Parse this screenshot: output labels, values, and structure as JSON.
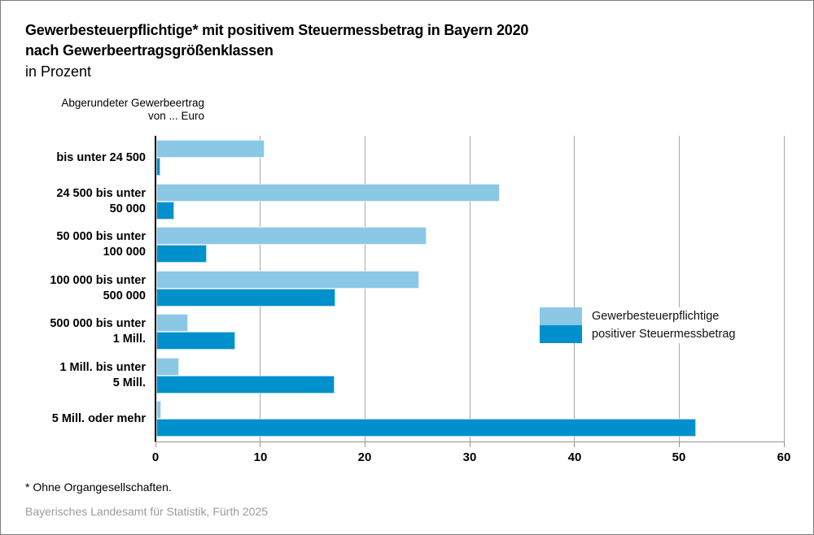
{
  "header": {
    "title_line1": "Gewerbesteuerpflichtige* mit positivem Steuermessbetrag in Bayern 2020",
    "title_line2": "nach Gewerbeertragsgrößenklassen",
    "unit_line": "in Prozent"
  },
  "axis_note": {
    "line1": "Abgerundeter Gewerbeertrag",
    "line2": "von ... Euro"
  },
  "footnote": "* Ohne Organgesellschaften.",
  "source": "Bayerisches Landesamt für Statistik, Fürth 2025",
  "colors": {
    "series_light": "#8AC8E6",
    "series_dark": "#0090CC",
    "gridline": "#a9a9a9",
    "axis": "#000000",
    "source_text": "#9b9b9b"
  },
  "chart_data": {
    "type": "bar",
    "orientation": "horizontal",
    "title": "Gewerbesteuerpflichtige* mit positivem Steuermessbetrag in Bayern 2020 nach Gewerbeertragsgrößenklassen",
    "subtitle": "in Prozent",
    "ylabel": "Abgerundeter Gewerbeertrag von ... Euro",
    "xlabel": "Prozent",
    "categories": [
      "bis unter 24 500",
      "24 500 bis unter\n50 000",
      "50 000 bis unter\n100 000",
      "100 000 bis unter\n500 000",
      "500 000 bis unter\n1 Mill.",
      "1 Mill. bis unter\n5 Mill.",
      "5 Mill. oder mehr"
    ],
    "series": [
      {
        "name": "Gewerbesteuerpflichtige",
        "color": "#8AC8E6",
        "values": [
          10.3,
          32.8,
          25.8,
          25.1,
          3.0,
          2.2,
          0.5
        ]
      },
      {
        "name": "positiver Steuermessbetrag",
        "color": "#0090CC",
        "values": [
          0.4,
          1.7,
          4.8,
          17.1,
          7.5,
          17.0,
          51.5
        ]
      }
    ],
    "xlim": [
      0,
      60
    ],
    "xticks": [
      0,
      10,
      20,
      30,
      40,
      50,
      60
    ],
    "grid": true,
    "legend_position": "right-middle"
  }
}
